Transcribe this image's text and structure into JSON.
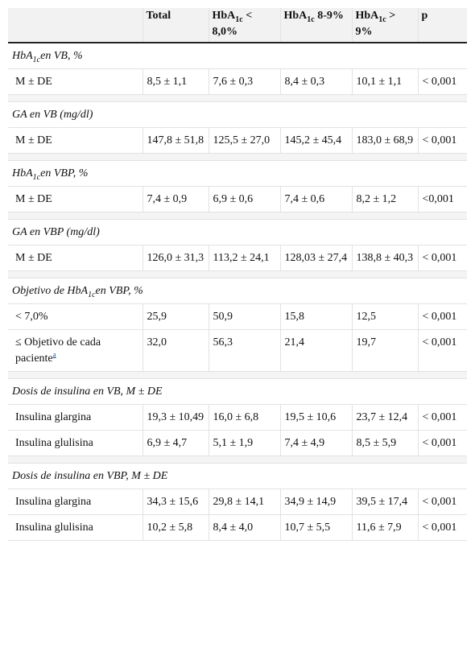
{
  "table": {
    "header": [
      [
        "Total"
      ],
      [
        "HbA",
        "1c",
        " < 8,0%"
      ],
      [
        "HbA",
        "1c",
        " 8-9%"
      ],
      [
        "HbA",
        "1c",
        " > 9%"
      ],
      [
        "p"
      ]
    ],
    "sections": [
      {
        "title": [
          "HbA",
          "1c",
          "en VB, %"
        ],
        "rows": [
          {
            "label": "M ± DE",
            "cells": [
              "8,5 ± 1,1",
              "7,6 ± 0,3",
              "8,4 ± 0,3",
              "10,1 ± 1,1",
              "< 0,001"
            ]
          }
        ]
      },
      {
        "title": [
          "GA en VB (mg/dl)"
        ],
        "rows": [
          {
            "label": "M ± DE",
            "cells": [
              "147,8 ± 51,8",
              "125,5 ± 27,0",
              "145,2 ± 45,4",
              "183,0 ± 68,9",
              "< 0,001"
            ]
          }
        ]
      },
      {
        "title": [
          "HbA",
          "1c",
          "en VBP, %"
        ],
        "rows": [
          {
            "label": "M ± DE",
            "cells": [
              "7,4 ± 0,9",
              "6,9 ± 0,6",
              "7,4 ± 0,6",
              "8,2 ± 1,2",
              "<0,001"
            ]
          }
        ]
      },
      {
        "title": [
          "GA en VBP (mg/dl)"
        ],
        "rows": [
          {
            "label": "M ± DE",
            "cells": [
              "126,0 ± 31,3",
              "113,2 ± 24,1",
              "128,03 ± 27,4",
              "138,8 ± 40,3",
              "< 0,001"
            ]
          }
        ]
      },
      {
        "title": [
          "Objetivo de HbA",
          "1c",
          "en VBP, %"
        ],
        "rows": [
          {
            "label": "< 7,0%",
            "cells": [
              "25,9",
              "50,9",
              "15,8",
              "12,5",
              "< 0,001"
            ]
          },
          {
            "label": "≤ Objetivo de cada paciente",
            "footnote": "a",
            "cells": [
              "32,0",
              "56,3",
              "21,4",
              "19,7",
              "< 0,001"
            ]
          }
        ]
      },
      {
        "title": [
          "Dosis de insulina en VB, M ± DE"
        ],
        "rows": [
          {
            "label": "Insulina glargina",
            "cells": [
              "19,3 ± 10,49",
              "16,0 ± 6,8",
              "19,5 ± 10,6",
              "23,7 ± 12,4",
              "< 0,001"
            ]
          },
          {
            "label": "Insulina glulisina",
            "cells": [
              "6,9 ± 4,7",
              "5,1 ± 1,9",
              "7,4 ± 4,9",
              "8,5 ± 5,9",
              "< 0,001"
            ]
          }
        ]
      },
      {
        "title": [
          "Dosis de insulina en VBP, M ± DE"
        ],
        "rows": [
          {
            "label": "Insulina glargina",
            "cells": [
              "34,3 ± 15,6",
              "29,8 ± 14,1",
              "34,9 ± 14,9",
              "39,5 ± 17,4",
              "< 0,001"
            ]
          },
          {
            "label": "Insulina glulisina",
            "cells": [
              "10,2 ± 5,8",
              "8,4 ± 4,0",
              "10,7 ± 5,5",
              "11,6 ± 7,9",
              "< 0,001"
            ]
          }
        ]
      }
    ]
  }
}
